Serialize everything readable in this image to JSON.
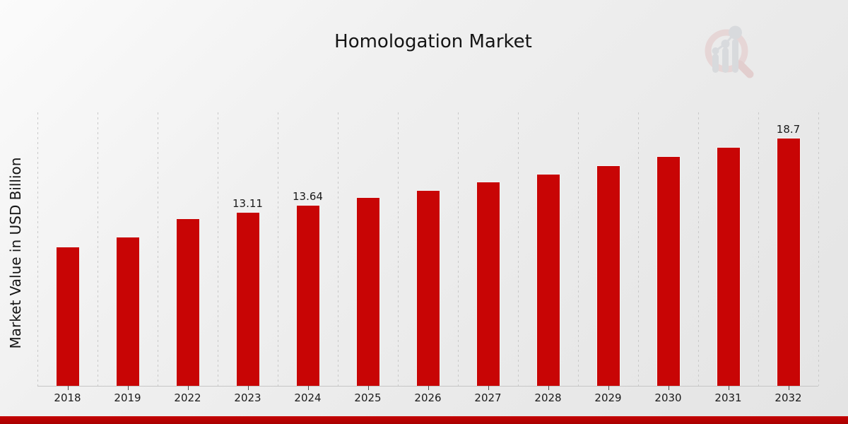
{
  "chart_data": {
    "type": "bar",
    "title": "Homologation Market",
    "xlabel": "",
    "ylabel": "Market Value in USD Billion",
    "categories": [
      "2018",
      "2019",
      "2022",
      "2023",
      "2024",
      "2025",
      "2026",
      "2027",
      "2028",
      "2029",
      "2030",
      "2031",
      "2032"
    ],
    "values": [
      10.5,
      11.24,
      12.63,
      13.11,
      13.64,
      14.19,
      14.76,
      15.36,
      15.97,
      16.62,
      17.29,
      17.98,
      18.7
    ],
    "data_labels": [
      "",
      "",
      "",
      "13.11",
      "13.64",
      "",
      "",
      "",
      "",
      "",
      "",
      "",
      "18.7"
    ],
    "ylim": [
      0,
      20.6
    ],
    "grid": "vertical-dashed",
    "legend": "none",
    "bar_color": "#c80505",
    "gridline_color": "#c9c9c9",
    "axis_color": "#c6c6c6",
    "text_color": "#141414"
  },
  "branding": {
    "logo_name": "market-research-future-watermark",
    "footer_bar_color": "#be0101"
  }
}
